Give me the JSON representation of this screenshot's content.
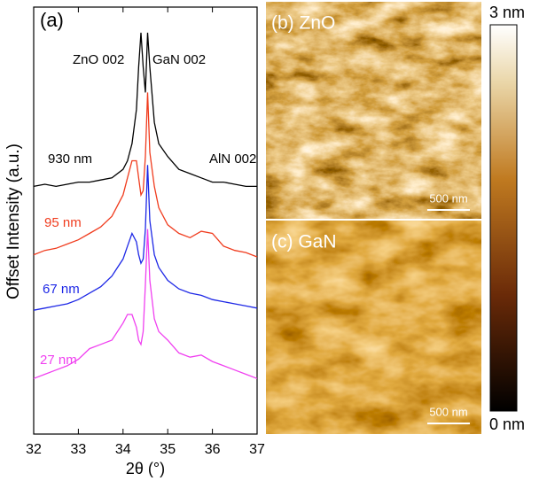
{
  "chart_data": {
    "type": "line",
    "annotations": [
      "(a)",
      "ZnO 002",
      "GaN 002",
      "AlN 002"
    ],
    "x_label": "2θ (°)",
    "y_label": "Offset Intensity (a.u.)",
    "x": [
      32,
      32.25,
      32.5,
      32.75,
      33,
      33.25,
      33.5,
      33.75,
      34,
      34.1,
      34.2,
      34.3,
      34.35,
      34.4,
      34.45,
      34.5,
      34.55,
      34.6,
      34.7,
      34.8,
      35,
      35.25,
      35.5,
      35.75,
      36,
      36.25,
      36.5,
      36.75,
      37
    ],
    "series": [
      {
        "name": "930 nm",
        "color": "#000000",
        "values": [
          5.8,
          5.85,
          5.8,
          5.85,
          5.9,
          5.9,
          5.95,
          6.0,
          6.2,
          6.4,
          6.8,
          7.6,
          8.6,
          9.4,
          8.6,
          8.0,
          9.4,
          8.6,
          7.3,
          6.8,
          6.5,
          6.2,
          6.1,
          6.0,
          5.9,
          5.9,
          5.85,
          5.8,
          5.8
        ]
      },
      {
        "name": "95 nm",
        "color": "#f03c1e",
        "values": [
          4.2,
          4.3,
          4.35,
          4.45,
          4.55,
          4.7,
          4.85,
          5.1,
          5.6,
          6.0,
          6.4,
          6.4,
          6.0,
          5.6,
          5.7,
          6.5,
          8.0,
          6.6,
          5.8,
          5.3,
          4.9,
          4.7,
          4.6,
          4.75,
          4.7,
          4.4,
          4.3,
          4.25,
          4.15
        ]
      },
      {
        "name": "67 nm",
        "color": "#1e28e6",
        "values": [
          2.9,
          2.95,
          3.0,
          3.05,
          3.15,
          3.3,
          3.45,
          3.7,
          4.1,
          4.4,
          4.7,
          4.5,
          4.2,
          4.0,
          4.1,
          4.8,
          6.3,
          5.0,
          4.2,
          3.9,
          3.6,
          3.4,
          3.3,
          3.25,
          3.15,
          3.1,
          3.05,
          3.0,
          2.95
        ]
      },
      {
        "name": "27 nm",
        "color": "#f040f0",
        "values": [
          1.3,
          1.4,
          1.5,
          1.6,
          1.75,
          2.0,
          2.1,
          2.2,
          2.6,
          2.8,
          2.8,
          2.5,
          2.2,
          2.1,
          2.4,
          3.5,
          4.8,
          3.6,
          2.7,
          2.4,
          2.2,
          1.9,
          1.8,
          1.85,
          1.7,
          1.6,
          1.5,
          1.4,
          1.3
        ]
      }
    ],
    "xlim": [
      32,
      37
    ],
    "xticks": [
      32,
      33,
      34,
      35,
      36,
      37
    ],
    "ylim": [
      0,
      10
    ]
  },
  "images": [
    {
      "label": "(b) ZnO",
      "scale_bar": "500 nm"
    },
    {
      "label": "(c) GaN",
      "scale_bar": "500 nm"
    }
  ],
  "colorbar": {
    "top": "3 nm",
    "bottom": "0 nm"
  }
}
